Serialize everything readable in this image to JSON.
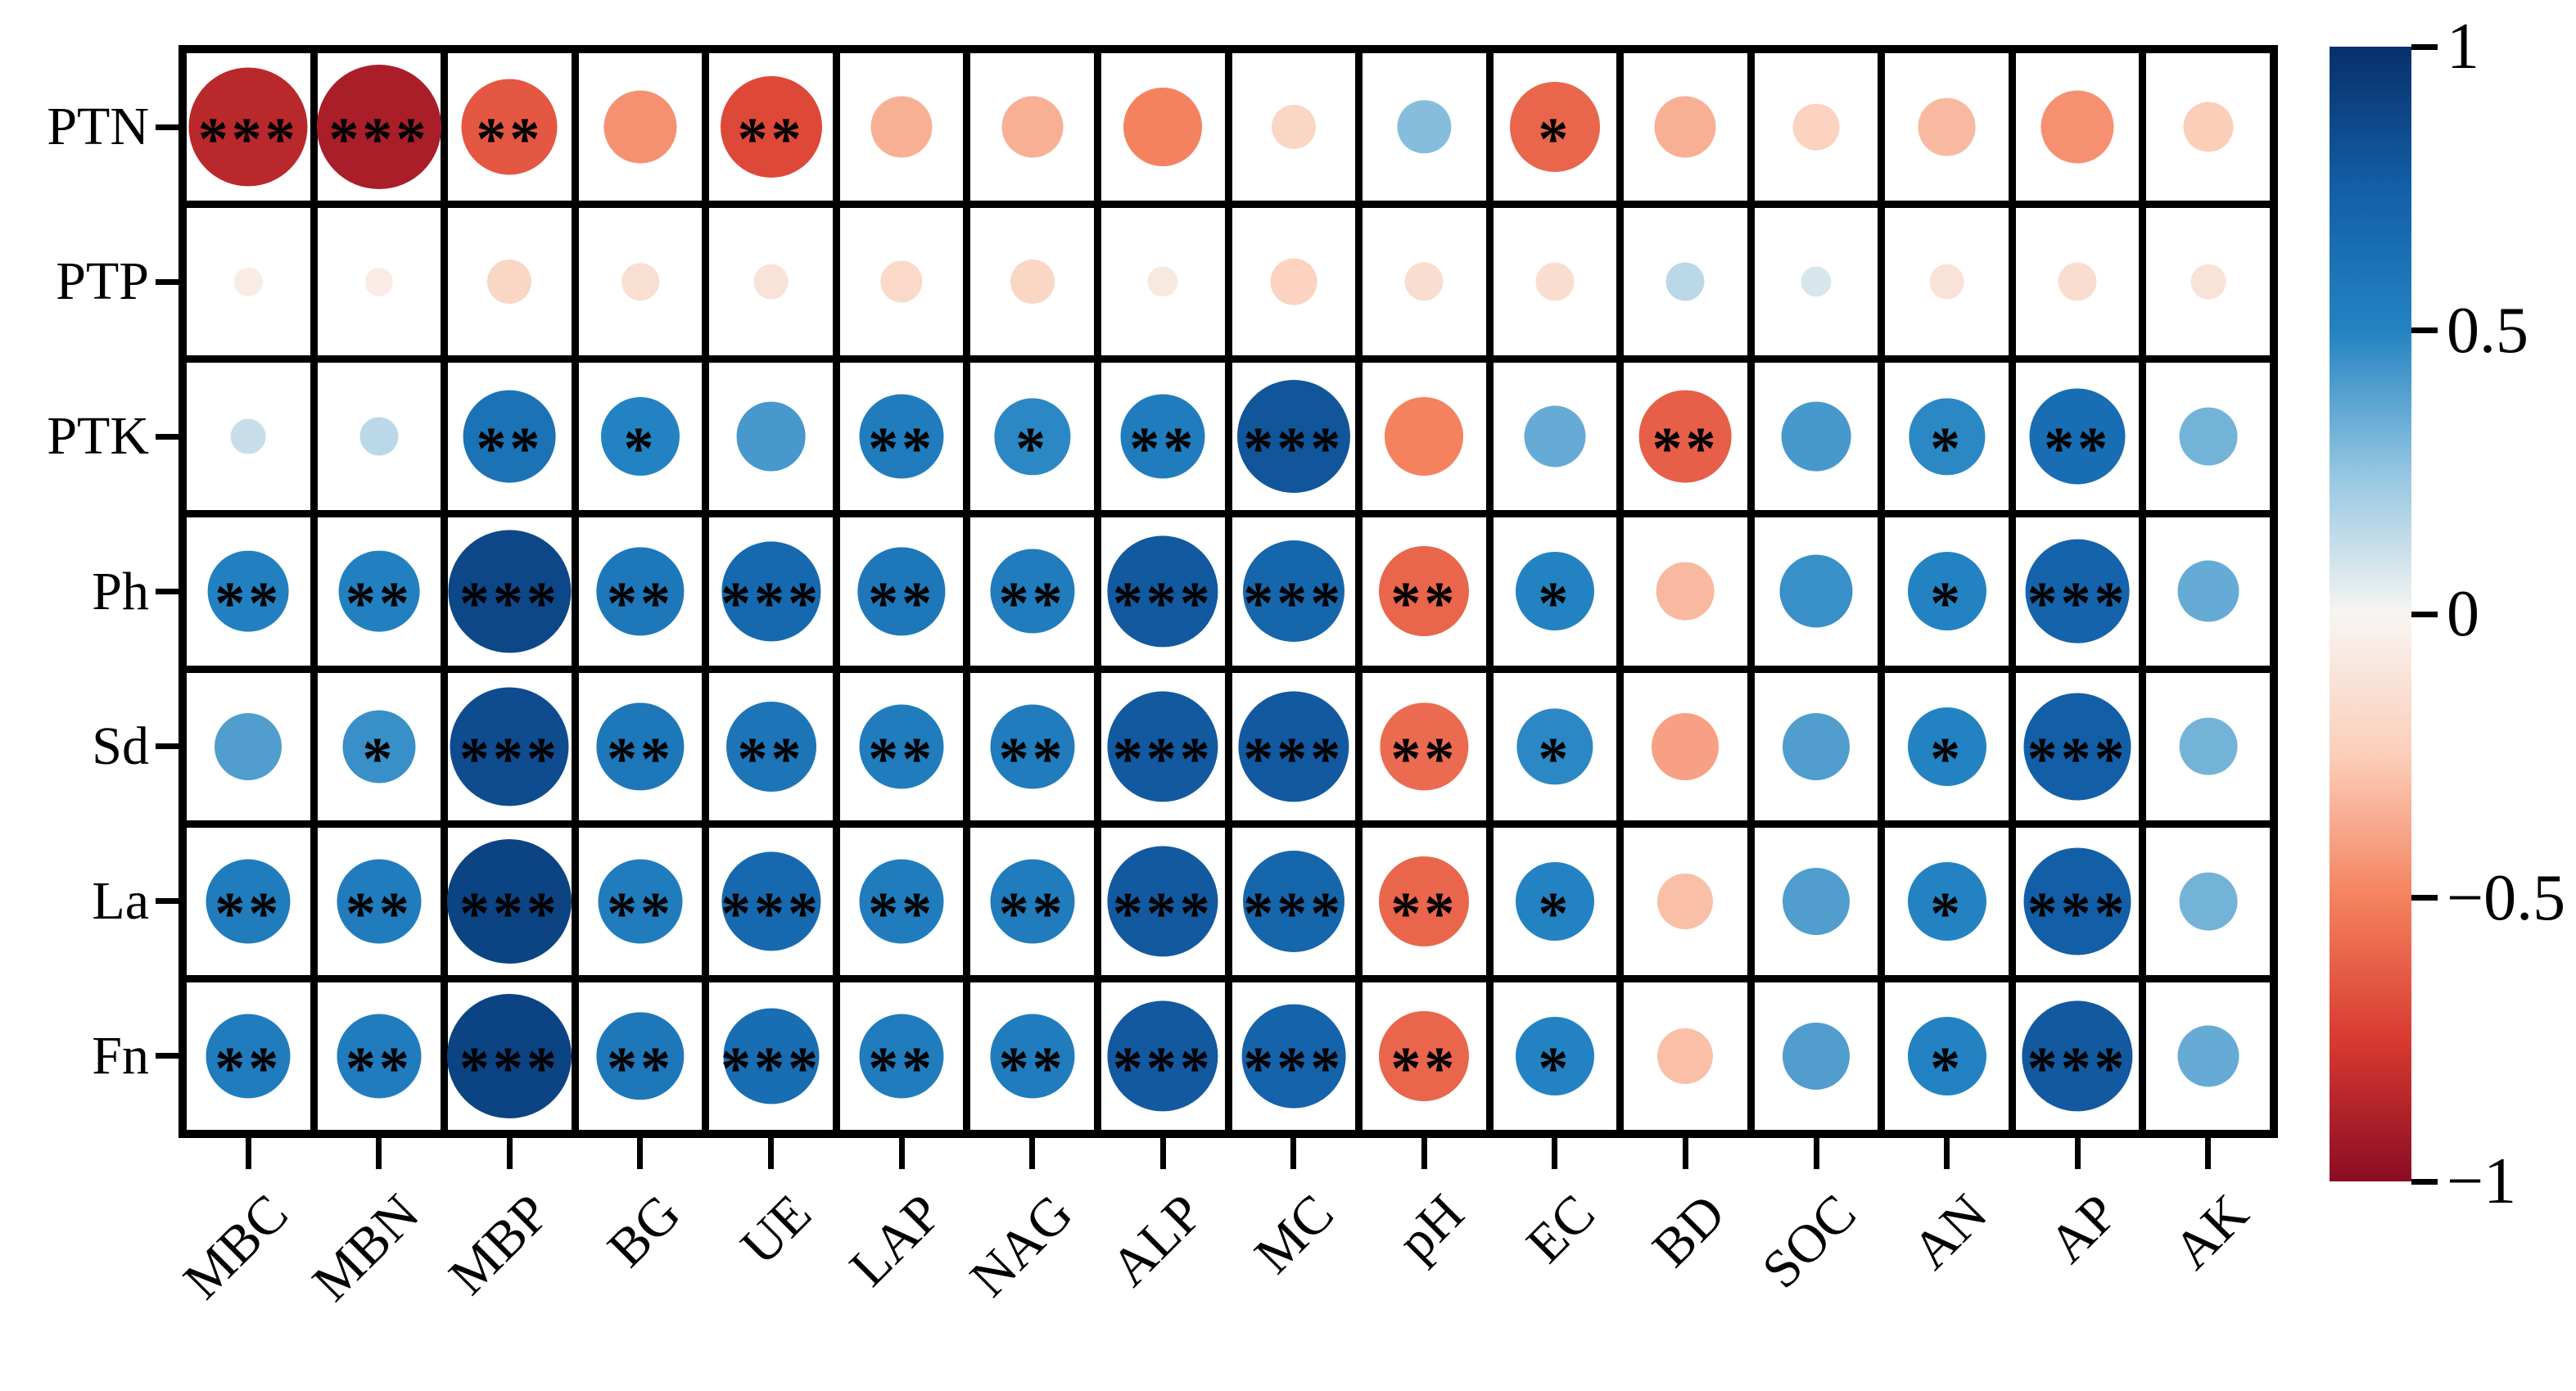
{
  "figure": {
    "background": "#ffffff",
    "cell_background": "#ffffff",
    "grid_line_color": "#000000",
    "star_color": "#000000"
  },
  "chart_data": {
    "type": "heatmap",
    "subtype": "correlation-bubble-matrix",
    "title": "",
    "rows": [
      "PTN",
      "PTP",
      "PTK",
      "Ph",
      "Sd",
      "La",
      "Fn"
    ],
    "columns": [
      "MBC",
      "MBN",
      "MBP",
      "BG",
      "UE",
      "LAP",
      "NAG",
      "ALP",
      "MC",
      "pH",
      "EC",
      "BD",
      "SOC",
      "AN",
      "AP",
      "AK"
    ],
    "values": [
      [
        -0.85,
        -0.9,
        -0.65,
        -0.45,
        -0.7,
        -0.35,
        -0.35,
        -0.5,
        -0.2,
        0.28,
        -0.6,
        -0.35,
        -0.22,
        -0.32,
        -0.45,
        -0.25
      ],
      [
        -0.06,
        -0.06,
        -0.2,
        -0.14,
        -0.12,
        -0.18,
        -0.2,
        -0.08,
        -0.22,
        -0.15,
        -0.15,
        0.15,
        0.08,
        -0.12,
        -0.15,
        -0.12
      ],
      [
        0.12,
        0.15,
        0.62,
        0.5,
        0.42,
        0.55,
        0.48,
        0.55,
        0.8,
        -0.5,
        0.35,
        -0.62,
        0.42,
        0.48,
        0.65,
        0.32
      ],
      [
        0.52,
        0.52,
        0.88,
        0.58,
        0.68,
        0.58,
        0.55,
        0.78,
        0.7,
        -0.6,
        0.5,
        -0.32,
        0.45,
        0.5,
        0.72,
        0.35
      ],
      [
        0.4,
        0.45,
        0.85,
        0.58,
        0.6,
        0.55,
        0.55,
        0.78,
        0.78,
        -0.58,
        0.48,
        -0.4,
        0.4,
        0.5,
        0.75,
        0.32
      ],
      [
        0.55,
        0.55,
        0.9,
        0.55,
        0.68,
        0.55,
        0.55,
        0.78,
        0.7,
        -0.6,
        0.5,
        -0.3,
        0.4,
        0.5,
        0.75,
        0.32
      ],
      [
        0.55,
        0.55,
        0.9,
        0.58,
        0.65,
        0.55,
        0.55,
        0.78,
        0.72,
        -0.6,
        0.5,
        -0.3,
        0.4,
        0.5,
        0.78,
        0.35
      ]
    ],
    "significance": [
      [
        "***",
        "***",
        "**",
        "",
        "**",
        "",
        "",
        "",
        "",
        "",
        "*",
        "",
        "",
        "",
        "",
        ""
      ],
      [
        "",
        "",
        "",
        "",
        "",
        "",
        "",
        "",
        "",
        "",
        "",
        "",
        "",
        "",
        "",
        ""
      ],
      [
        "",
        "",
        "**",
        "*",
        "",
        "**",
        "*",
        "**",
        "***",
        "",
        "",
        "**",
        "",
        "*",
        "**",
        ""
      ],
      [
        "**",
        "**",
        "***",
        "**",
        "***",
        "**",
        "**",
        "***",
        "***",
        "**",
        "*",
        "",
        "",
        "*",
        "***",
        ""
      ],
      [
        "",
        "*",
        "***",
        "**",
        "**",
        "**",
        "**",
        "***",
        "***",
        "**",
        "*",
        "",
        "",
        "*",
        "***",
        ""
      ],
      [
        "**",
        "**",
        "***",
        "**",
        "***",
        "**",
        "**",
        "***",
        "***",
        "**",
        "*",
        "",
        "",
        "*",
        "***",
        ""
      ],
      [
        "**",
        "**",
        "***",
        "**",
        "***",
        "**",
        "**",
        "***",
        "***",
        "**",
        "*",
        "",
        "",
        "*",
        "***",
        ""
      ]
    ],
    "value_range": [
      -1,
      1
    ],
    "legend": {
      "position": "right",
      "colorbar_tick_labels": [
        "1",
        "0.5",
        "0",
        "−0.5",
        "−1"
      ],
      "colorbar_tick_values": [
        1,
        0.5,
        0,
        -0.5,
        -1
      ]
    },
    "colormap_stops": [
      {
        "value": -1.0,
        "color": "#8a0c24"
      },
      {
        "value": -0.75,
        "color": "#d83a30"
      },
      {
        "value": -0.5,
        "color": "#f4825f"
      },
      {
        "value": -0.25,
        "color": "#fbceb9"
      },
      {
        "value": 0.0,
        "color": "#f7f5f2"
      },
      {
        "value": 0.25,
        "color": "#93c5e1"
      },
      {
        "value": 0.5,
        "color": "#2383c2"
      },
      {
        "value": 0.75,
        "color": "#135fa7"
      },
      {
        "value": 1.0,
        "color": "#08306b"
      }
    ],
    "bubble_size_rule": "diameter_px = 26 + 140 * abs(r)"
  }
}
